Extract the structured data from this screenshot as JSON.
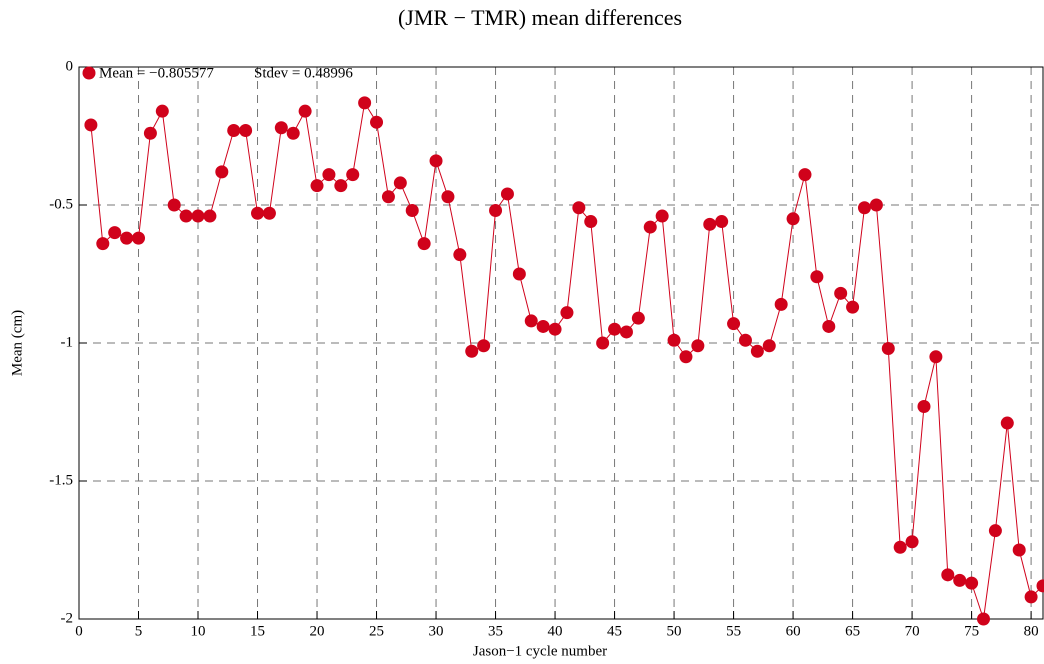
{
  "chart_data": {
    "type": "scatter-line",
    "title": "(JMR − TMR) mean differences",
    "x_label": "Jason−1 cycle number",
    "y_label": "Mean (cm)",
    "annotations": [
      "Mean = −0.805577",
      "Stdev = 0.48996"
    ],
    "x": [
      1,
      2,
      3,
      4,
      5,
      6,
      7,
      8,
      9,
      10,
      11,
      12,
      13,
      14,
      15,
      16,
      17,
      18,
      19,
      20,
      21,
      22,
      23,
      24,
      25,
      26,
      27,
      28,
      29,
      30,
      31,
      32,
      33,
      34,
      35,
      36,
      37,
      38,
      39,
      40,
      41,
      42,
      43,
      44,
      45,
      46,
      47,
      48,
      49,
      50,
      51,
      52,
      53,
      54,
      55,
      56,
      57,
      58,
      59,
      60,
      61,
      62,
      63,
      64,
      65,
      66,
      67,
      68,
      69,
      70,
      71,
      72,
      73,
      74,
      75,
      76,
      77,
      78,
      79,
      80,
      81
    ],
    "series": [
      {
        "color": "#d0021b",
        "values": [
          -0.21,
          -0.64,
          -0.6,
          -0.62,
          -0.62,
          -0.24,
          -0.16,
          -0.5,
          -0.54,
          -0.54,
          -0.54,
          -0.38,
          -0.23,
          -0.23,
          -0.53,
          -0.53,
          -0.22,
          -0.24,
          -0.16,
          -0.43,
          -0.39,
          -0.43,
          -0.39,
          -0.13,
          -0.2,
          -0.47,
          -0.42,
          -0.52,
          -0.64,
          -0.34,
          -0.47,
          -0.68,
          -1.03,
          -1.01,
          -0.52,
          -0.46,
          -0.75,
          -0.92,
          -0.94,
          -0.95,
          -0.89,
          -0.51,
          -0.56,
          -1.0,
          -0.95,
          -0.96,
          -0.91,
          -0.58,
          -0.54,
          -0.99,
          -1.05,
          -1.01,
          -0.57,
          -0.56,
          -0.93,
          -0.99,
          -1.03,
          -1.01,
          -0.86,
          -0.55,
          -0.39,
          -0.76,
          -0.94,
          -0.82,
          -0.87,
          -0.51,
          -0.5,
          -1.02,
          -1.74,
          -1.72,
          -1.23,
          -1.05,
          -1.84,
          -1.86,
          -1.87,
          -2.0,
          -1.68,
          -1.29,
          -1.75,
          -1.92,
          -1.88
        ]
      }
    ],
    "xlim": [
      0,
      81
    ],
    "xticks": [
      0,
      5,
      10,
      15,
      20,
      25,
      30,
      35,
      40,
      45,
      50,
      55,
      60,
      65,
      70,
      75,
      80
    ],
    "ylim": [
      -2,
      0
    ],
    "yticks": [
      0,
      -0.5,
      -1,
      -1.5,
      -2
    ],
    "grid": true
  }
}
